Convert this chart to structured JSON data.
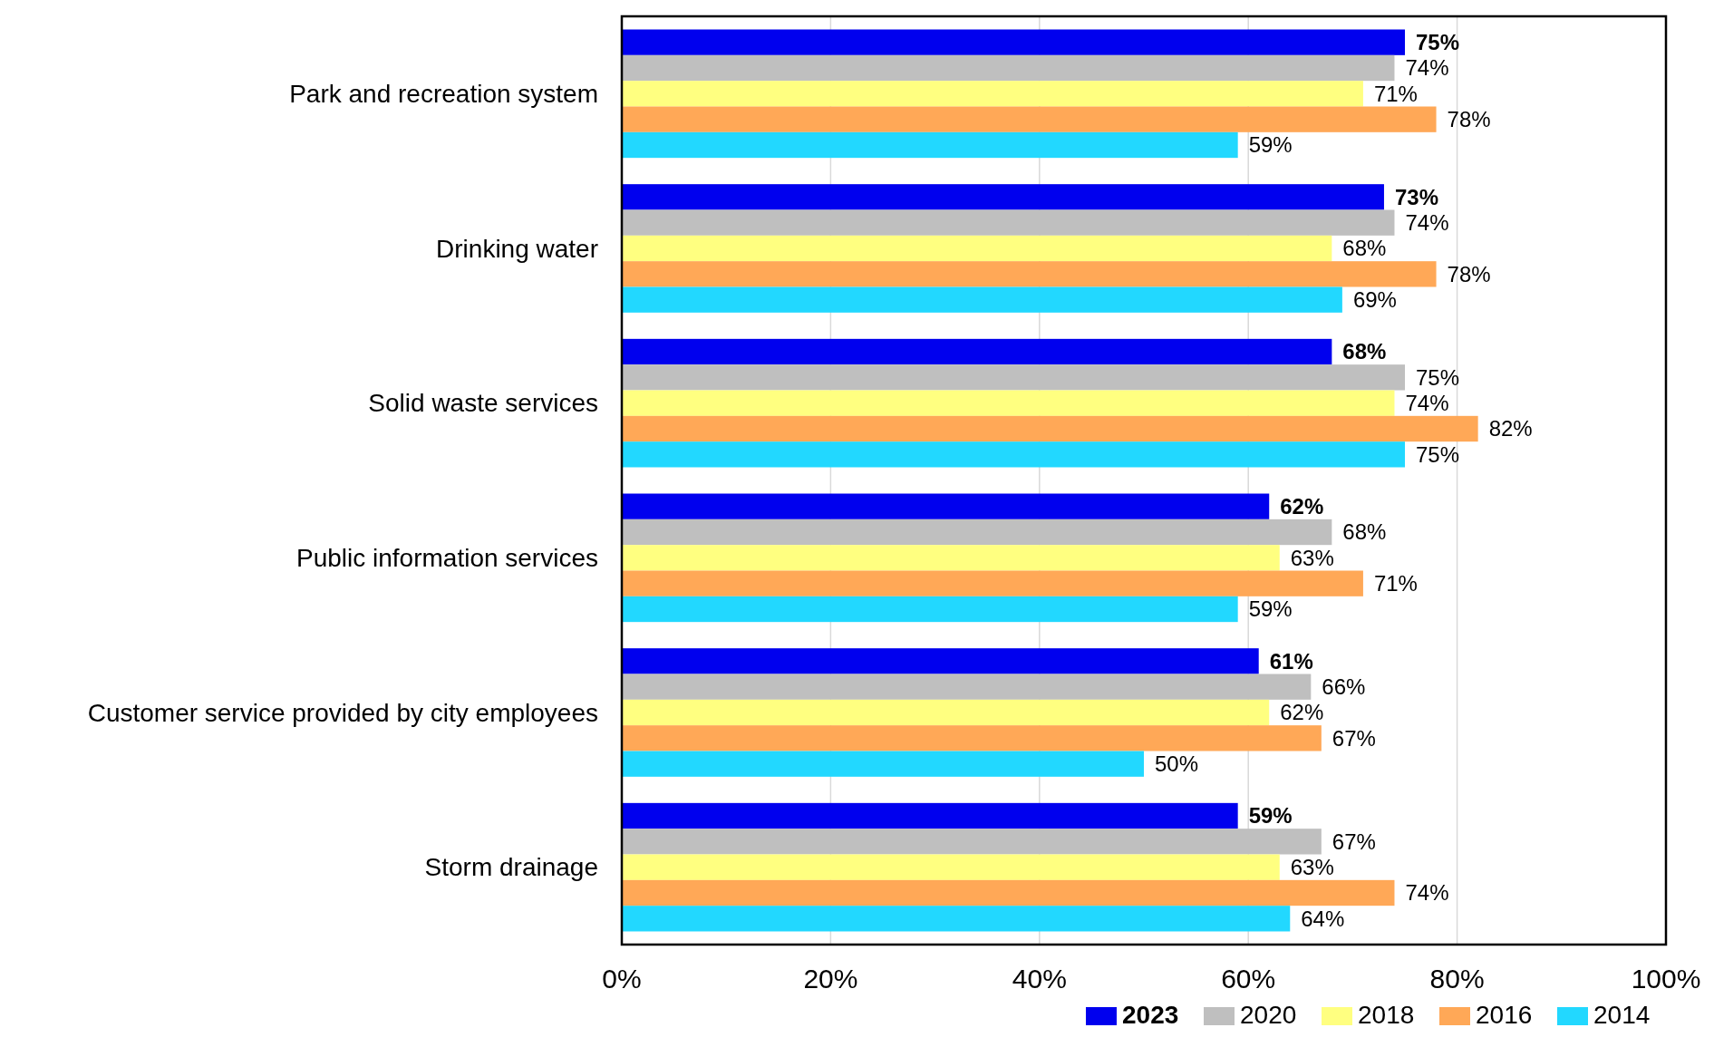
{
  "chart_data": {
    "type": "bar",
    "orientation": "horizontal",
    "categories": [
      "Park and recreation system",
      "Drinking water",
      "Solid waste services",
      "Public information services",
      "Customer service provided by city employees",
      "Storm drainage"
    ],
    "series": [
      {
        "name": "2023",
        "color": "#0000ee",
        "values": [
          75,
          73,
          68,
          62,
          61,
          59
        ],
        "value_labels": [
          "75%",
          "73%",
          "68%",
          "62%",
          "61%",
          "59%"
        ]
      },
      {
        "name": "2020",
        "color": "#bfbfbf",
        "values": [
          74,
          74,
          75,
          68,
          66,
          67
        ],
        "value_labels": [
          "74%",
          "74%",
          "75%",
          "68%",
          "66%",
          "67%"
        ]
      },
      {
        "name": "2018",
        "color": "#ffff80",
        "values": [
          71,
          68,
          74,
          63,
          62,
          63
        ],
        "value_labels": [
          "71%",
          "68%",
          "74%",
          "63%",
          "62%",
          "63%"
        ]
      },
      {
        "name": "2016",
        "color": "#ffa857",
        "values": [
          78,
          78,
          82,
          71,
          67,
          74
        ],
        "value_labels": [
          "78%",
          "78%",
          "82%",
          "71%",
          "67%",
          "74%"
        ]
      },
      {
        "name": "2014",
        "color": "#22d8ff",
        "values": [
          59,
          69,
          75,
          59,
          50,
          64
        ],
        "value_labels": [
          "59%",
          "69%",
          "75%",
          "59%",
          "50%",
          "64%"
        ]
      }
    ],
    "xlim": [
      0,
      100
    ],
    "xticks": [
      {
        "value": 0,
        "label": "0%"
      },
      {
        "value": 20,
        "label": "20%"
      },
      {
        "value": 40,
        "label": "40%"
      },
      {
        "value": 60,
        "label": "60%"
      },
      {
        "value": 80,
        "label": "80%"
      },
      {
        "value": 100,
        "label": "100%"
      }
    ],
    "grid": "x",
    "legend": "bottom right"
  }
}
